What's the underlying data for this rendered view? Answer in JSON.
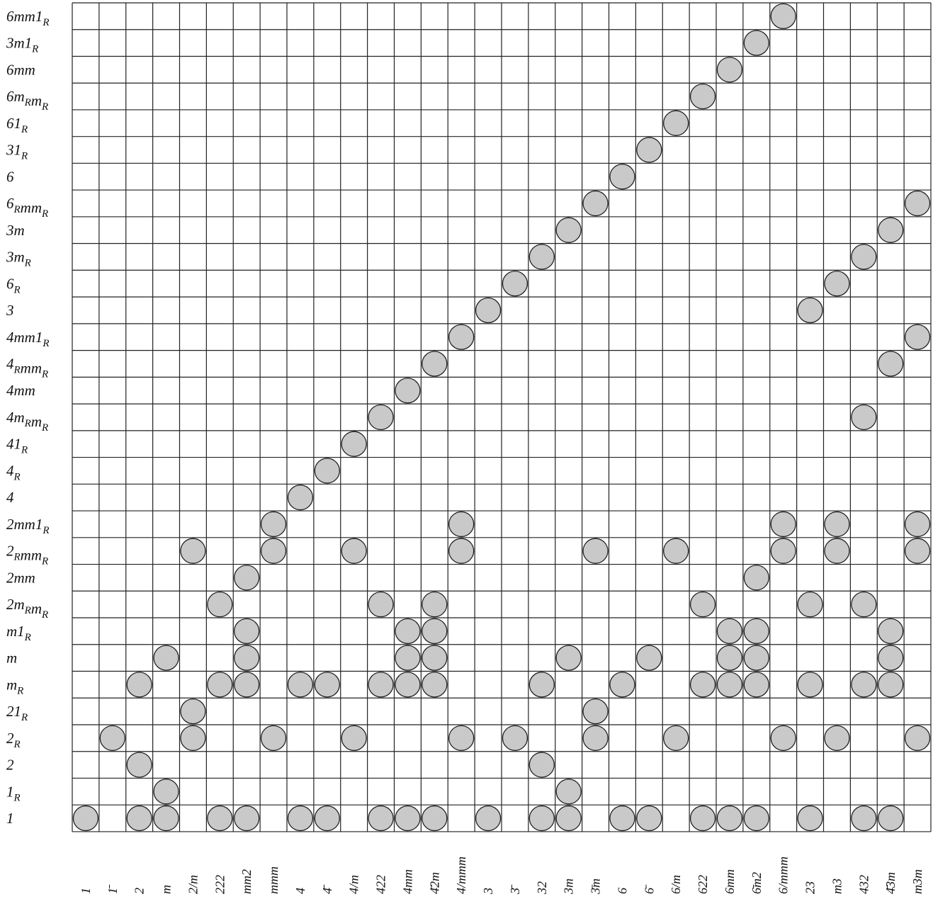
{
  "rows": [
    "6mm1_R",
    "3m1_R",
    "6mm",
    "6m_Rm_R",
    "61_R",
    "31_R",
    "6",
    "6_Rmm_R",
    "3m",
    "3m_R",
    "6_R",
    "3",
    "4mm1_R",
    "4_Rmm_R",
    "4mm",
    "4m_Rm_R",
    "41_R",
    "4_R",
    "4",
    "2mm1_R",
    "2_Rmm_R",
    "2mm",
    "2m_Rm_R",
    "m1_R",
    "m",
    "m_R",
    "21_R",
    "2_R",
    "2",
    "1_R",
    "1"
  ],
  "columns": [
    "1",
    "1̄",
    "2",
    "m",
    "2/m",
    "222",
    "mm2",
    "mmm",
    "4",
    "4̄",
    "4/m",
    "422",
    "4mm",
    "4̄2m",
    "4/mmm",
    "3",
    "3̄",
    "32",
    "3m",
    "3̄m",
    "6",
    "6̄",
    "6/m",
    "622",
    "6mm",
    "6̄m2",
    "6/mmm",
    "23",
    "m3",
    "432",
    "4̄3m",
    "m3m"
  ],
  "filled_cells": {
    "6mm1_R": [
      26
    ],
    "3m1_R": [
      25
    ],
    "6mm": [
      24
    ],
    "6m_Rm_R": [
      23
    ],
    "61_R": [
      22
    ],
    "31_R": [
      21
    ],
    "6": [
      20
    ],
    "6_Rmm_R": [
      19,
      31
    ],
    "3m": [
      18,
      30
    ],
    "3m_R": [
      17,
      29
    ],
    "6_R": [
      16,
      28
    ],
    "3": [
      15,
      27
    ],
    "4mm1_R": [
      14,
      31
    ],
    "4_Rmm_R": [
      13,
      30
    ],
    "4mm": [
      12
    ],
    "4m_Rm_R": [
      11,
      29
    ],
    "41_R": [
      10
    ],
    "4_R": [
      9
    ],
    "4": [
      8
    ],
    "2mm1_R": [
      7,
      14,
      26,
      28,
      31
    ],
    "2_Rmm_R": [
      4,
      7,
      10,
      14,
      19,
      22,
      26,
      28,
      31
    ],
    "2mm": [
      6,
      25
    ],
    "2m_Rm_R": [
      5,
      11,
      13,
      23,
      27,
      29
    ],
    "m1_R": [
      6,
      12,
      13,
      24,
      25,
      30
    ],
    "m": [
      3,
      6,
      12,
      13,
      18,
      21,
      24,
      25,
      30
    ],
    "m_R": [
      2,
      5,
      6,
      8,
      9,
      11,
      12,
      13,
      17,
      20,
      23,
      24,
      25,
      27,
      29,
      30
    ],
    "21_R": [
      4,
      19
    ],
    "2_R": [
      1,
      4,
      7,
      10,
      14,
      16,
      19,
      22,
      26,
      28,
      31
    ],
    "2": [
      2,
      17
    ],
    "1_R": [
      3,
      18
    ],
    "1": [
      0,
      2,
      3,
      5,
      6,
      8,
      9,
      11,
      12,
      13,
      15,
      17,
      18,
      20,
      21,
      23,
      24,
      25,
      27,
      29,
      30
    ]
  },
  "colors": {
    "dot_fill": "#c9c9c9",
    "grid": "#222222",
    "text": "#111111"
  }
}
